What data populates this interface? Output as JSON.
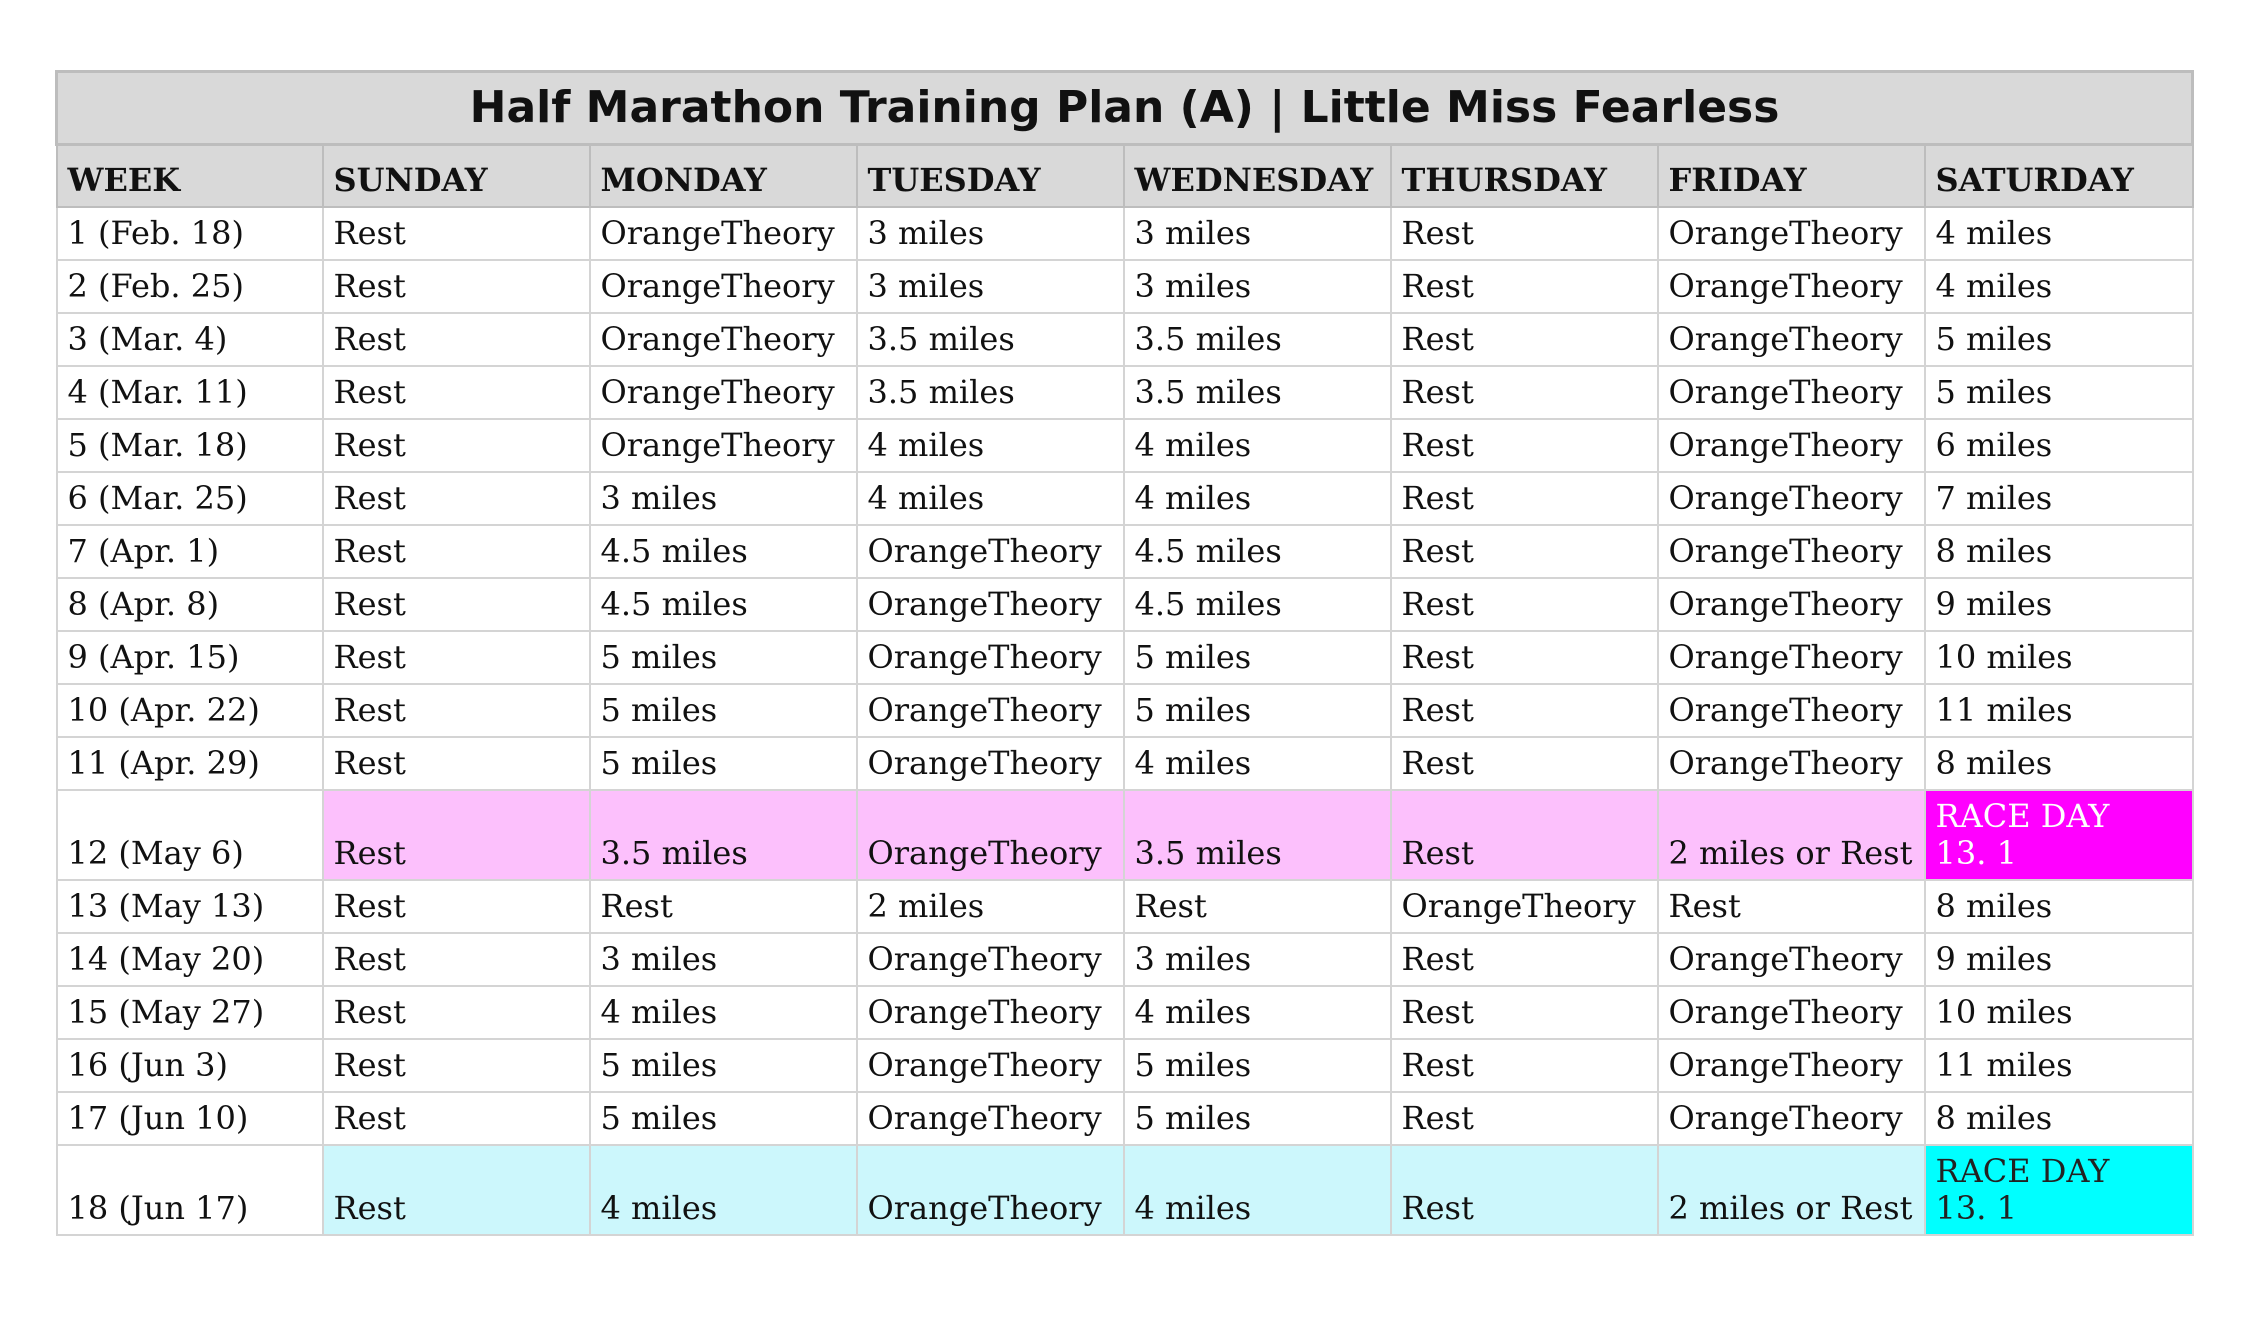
{
  "title": "Half Marathon Training Plan (A) | Little Miss Fearless",
  "headers": [
    "WEEK",
    "SUNDAY",
    "MONDAY",
    "TUESDAY",
    "WEDNESDAY",
    "THURSDAY",
    "FRIDAY",
    "SATURDAY"
  ],
  "rows": [
    {
      "week": "1 (Feb. 18)",
      "days": [
        "Rest",
        "OrangeTheory",
        "3 miles",
        "3 miles",
        "Rest",
        "OrangeTheory",
        "4 miles"
      ]
    },
    {
      "week": "2 (Feb. 25)",
      "days": [
        "Rest",
        "OrangeTheory",
        "3 miles",
        "3 miles",
        "Rest",
        "OrangeTheory",
        "4 miles"
      ]
    },
    {
      "week": "3 (Mar. 4)",
      "days": [
        "Rest",
        "OrangeTheory",
        "3.5 miles",
        "3.5 miles",
        "Rest",
        "OrangeTheory",
        "5 miles"
      ]
    },
    {
      "week": "4 (Mar. 11)",
      "days": [
        "Rest",
        "OrangeTheory",
        "3.5 miles",
        "3.5 miles",
        "Rest",
        "OrangeTheory",
        "5 miles"
      ]
    },
    {
      "week": "5 (Mar. 18)",
      "days": [
        "Rest",
        "OrangeTheory",
        "4 miles",
        "4 miles",
        "Rest",
        "OrangeTheory",
        "6 miles"
      ]
    },
    {
      "week": "6 (Mar. 25)",
      "days": [
        "Rest",
        "3 miles",
        "4 miles",
        "4 miles",
        "Rest",
        "OrangeTheory",
        "7 miles"
      ]
    },
    {
      "week": "7 (Apr. 1)",
      "days": [
        "Rest",
        "4.5 miles",
        "OrangeTheory",
        "4.5 miles",
        "Rest",
        "OrangeTheory",
        "8 miles"
      ]
    },
    {
      "week": "8 (Apr. 8)",
      "days": [
        "Rest",
        "4.5 miles",
        "OrangeTheory",
        "4.5 miles",
        "Rest",
        "OrangeTheory",
        "9 miles"
      ]
    },
    {
      "week": "9 (Apr. 15)",
      "days": [
        "Rest",
        "5 miles",
        "OrangeTheory",
        "5 miles",
        "Rest",
        "OrangeTheory",
        "10 miles"
      ]
    },
    {
      "week": "10 (Apr. 22)",
      "days": [
        "Rest",
        "5 miles",
        "OrangeTheory",
        "5 miles",
        "Rest",
        "OrangeTheory",
        "11 miles"
      ]
    },
    {
      "week": "11 (Apr. 29)",
      "days": [
        "Rest",
        "5 miles",
        "OrangeTheory",
        "4 miles",
        "Rest",
        "OrangeTheory",
        "8 miles"
      ]
    },
    {
      "week": "12 (May 6)",
      "days": [
        "Rest",
        "3.5 miles",
        "OrangeTheory",
        "3.5 miles",
        "Rest",
        "2 miles or Rest"
      ],
      "race": {
        "label": "RACE DAY",
        "distance": "13. 1"
      }
    },
    {
      "week": "13 (May 13)",
      "days": [
        "Rest",
        "Rest",
        "2 miles",
        "Rest",
        "OrangeTheory",
        "Rest",
        "8 miles"
      ]
    },
    {
      "week": "14 (May 20)",
      "days": [
        "Rest",
        "3 miles",
        "OrangeTheory",
        "3 miles",
        "Rest",
        "OrangeTheory",
        "9 miles"
      ]
    },
    {
      "week": "15 (May 27)",
      "days": [
        "Rest",
        "4 miles",
        "OrangeTheory",
        "4 miles",
        "Rest",
        "OrangeTheory",
        "10 miles"
      ]
    },
    {
      "week": "16 (Jun 3)",
      "days": [
        "Rest",
        "5 miles",
        "OrangeTheory",
        "5 miles",
        "Rest",
        "OrangeTheory",
        "11 miles"
      ]
    },
    {
      "week": "17 (Jun 10)",
      "days": [
        "Rest",
        "5 miles",
        "OrangeTheory",
        "5 miles",
        "Rest",
        "OrangeTheory",
        "8 miles"
      ]
    },
    {
      "week": "18 (Jun 17)",
      "days": [
        "Rest",
        "4 miles",
        "OrangeTheory",
        "4 miles",
        "Rest",
        "2 miles or Rest"
      ],
      "race": {
        "label": "RACE DAY",
        "distance": "13. 1"
      }
    }
  ],
  "colors": {
    "header_bg": "#d9d9d9",
    "race1_row": "#fcc0fc",
    "race1_cell": "#ff00ff",
    "race2_row": "#ccf7fc",
    "race2_cell": "#00ffff"
  }
}
